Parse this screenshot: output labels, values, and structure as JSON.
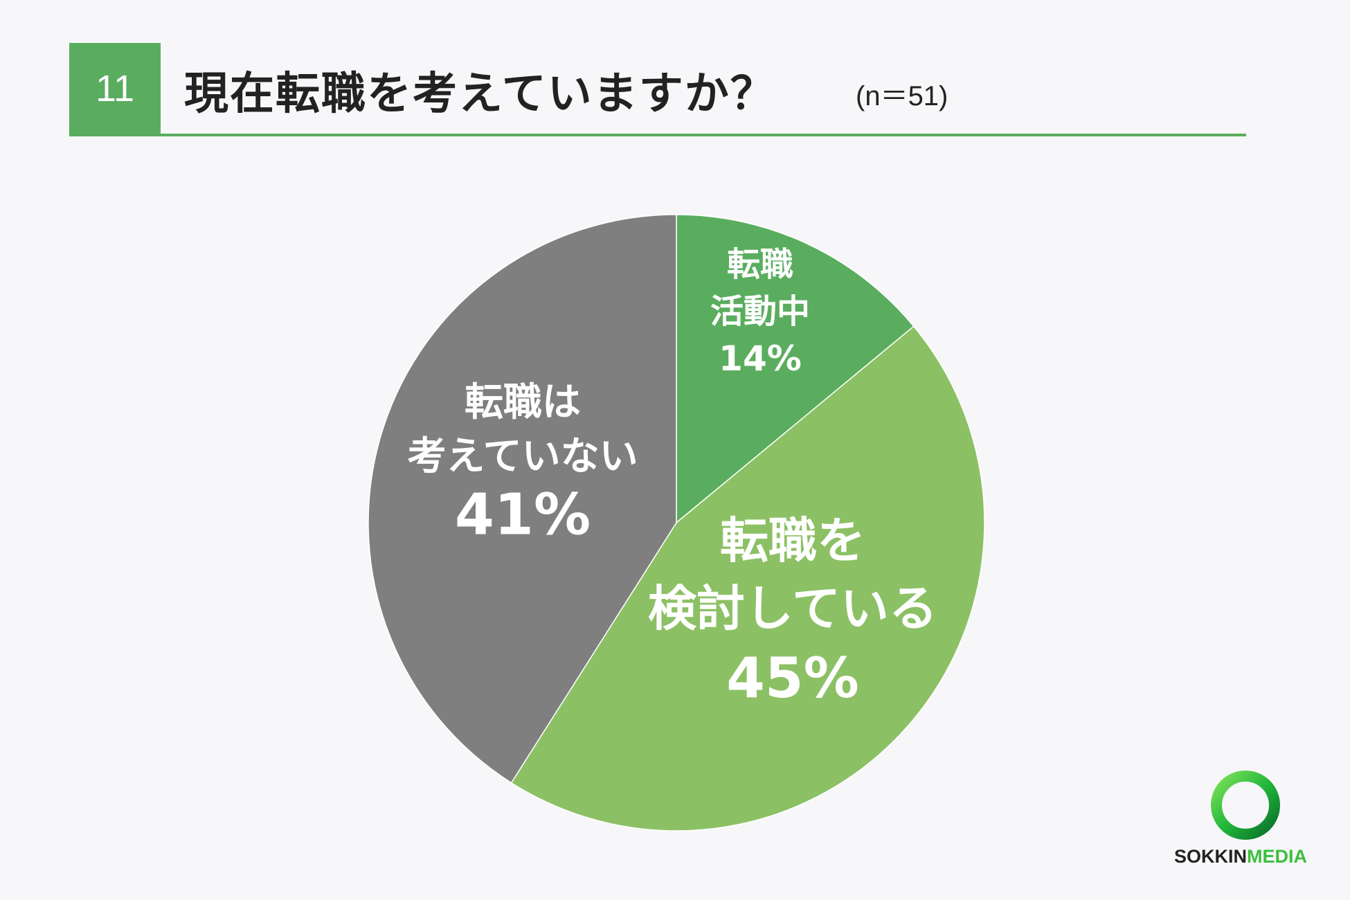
{
  "header": {
    "number": "11",
    "title": "現在転職を考えていますか？",
    "sample": "(n＝51)"
  },
  "colors": {
    "accent": "#5aad5e",
    "slice_active": "#5aad5e",
    "slice_considering": "#8cc065",
    "slice_not": "#7f7f7f"
  },
  "chart_data": {
    "type": "pie",
    "title": "現在転職を考えていますか？",
    "slices": [
      {
        "label": "転職活動中",
        "label_lines": [
          "転職",
          "活動中"
        ],
        "value": 14,
        "value_label": "14%",
        "color": "#5aad5e"
      },
      {
        "label": "転職を検討している",
        "label_lines": [
          "転職を",
          "検討している"
        ],
        "value": 45,
        "value_label": "45%",
        "color": "#8cc065"
      },
      {
        "label": "転職は考えていない",
        "label_lines": [
          "転職は",
          "考えていない"
        ],
        "value": 41,
        "value_label": "41%",
        "color": "#7f7f7f"
      }
    ]
  },
  "logo": {
    "part1": "SOKKIN",
    "part2": "MEDIA"
  }
}
